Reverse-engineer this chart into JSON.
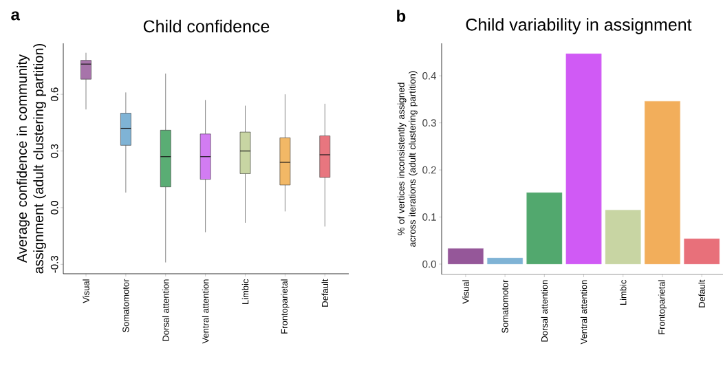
{
  "chart_data": [
    {
      "type": "box",
      "title": "Child confidence",
      "ylabel": "Average confidence in community assignment (adult clustering partition)",
      "categories": [
        "Visual",
        "Somatomotor",
        "Dorsal attention",
        "Ventral attention",
        "Limbic",
        "Frontoparietal",
        "Default"
      ],
      "colors": [
        "#a774aa",
        "#7fb3d5",
        "#5aad74",
        "#d27cf2",
        "#c8d5a3",
        "#f2b866",
        "#e8767f"
      ],
      "boxes": [
        {
          "low": 0.52,
          "q1": 0.68,
          "median": 0.76,
          "q3": 0.78,
          "high": 0.82
        },
        {
          "low": 0.08,
          "q1": 0.33,
          "median": 0.42,
          "q3": 0.5,
          "high": 0.61
        },
        {
          "low": -0.29,
          "q1": 0.11,
          "median": 0.27,
          "q3": 0.41,
          "high": 0.71
        },
        {
          "low": -0.13,
          "q1": 0.15,
          "median": 0.27,
          "q3": 0.39,
          "high": 0.57
        },
        {
          "low": -0.08,
          "q1": 0.18,
          "median": 0.3,
          "q3": 0.4,
          "high": 0.54
        },
        {
          "low": -0.02,
          "q1": 0.12,
          "median": 0.24,
          "q3": 0.37,
          "high": 0.6
        },
        {
          "low": -0.1,
          "q1": 0.16,
          "median": 0.28,
          "q3": 0.38,
          "high": 0.55
        }
      ],
      "ylim": [
        -0.35,
        0.87
      ],
      "yticks": [
        -0.3,
        {
          "value": 0,
          "label": "0.0"
        },
        0.3,
        0.6
      ],
      "annotations": [
        "a"
      ]
    },
    {
      "type": "bar",
      "title": "Child variability in assignment",
      "ylabel": "% of vertices inconsistently assigned across iterations (adult clustering partition)",
      "categories": [
        "Visual",
        "Somatomotor",
        "Dorsal attention",
        "Ventral attention",
        "Limbic",
        "Frontoparietal",
        "Default"
      ],
      "values": [
        0.033,
        0.013,
        0.152,
        0.447,
        0.115,
        0.346,
        0.054
      ],
      "colors": [
        "#955799",
        "#7fb3d5",
        "#52a86e",
        "#d05af5",
        "#c8d5a3",
        "#f2ae5b",
        "#e8707a"
      ],
      "ylim": [
        -0.022,
        0.469
      ],
      "yticks": [
        {
          "value": 0,
          "label": "0.0"
        },
        0.1,
        0.2,
        0.3,
        0.4
      ],
      "annotations": [
        "b"
      ]
    }
  ]
}
